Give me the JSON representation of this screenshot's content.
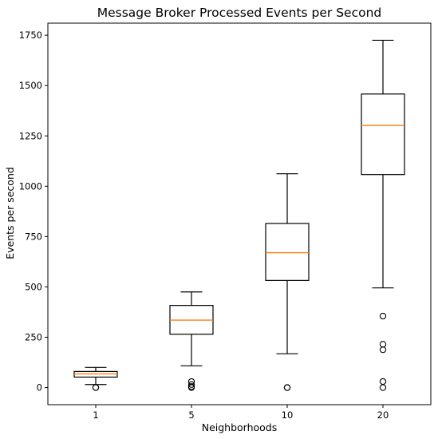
{
  "chart_data": {
    "type": "box",
    "title": "Message Broker Processed Events per Second",
    "xlabel": "Neighborhoods",
    "ylabel": "Events per second",
    "categories": [
      "1",
      "5",
      "10",
      "20"
    ],
    "ylim": [
      -85,
      1810
    ],
    "yticks": [
      0,
      250,
      500,
      750,
      1000,
      1250,
      1500,
      1750
    ],
    "grid": false,
    "colors": {
      "box": "#000000",
      "median": "#ff7f0e"
    },
    "boxes": [
      {
        "label": "1",
        "whisker_low": 15,
        "q1": 52,
        "median": 68,
        "q3": 80,
        "whisker_high": 100,
        "outliers": [
          0,
          0
        ]
      },
      {
        "label": "5",
        "whisker_low": 108,
        "q1": 265,
        "median": 335,
        "q3": 408,
        "whisker_high": 475,
        "outliers": [
          30,
          15,
          5,
          0
        ]
      },
      {
        "label": "10",
        "whisker_low": 168,
        "q1": 532,
        "median": 670,
        "q3": 815,
        "whisker_high": 1062,
        "outliers": [
          0,
          0
        ]
      },
      {
        "label": "20",
        "whisker_low": 495,
        "q1": 1058,
        "median": 1302,
        "q3": 1458,
        "whisker_high": 1725,
        "outliers": [
          355,
          215,
          188,
          30,
          0
        ]
      }
    ]
  }
}
